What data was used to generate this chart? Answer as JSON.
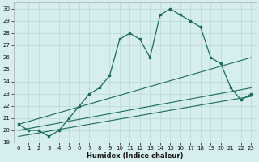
{
  "xlabel": "Humidex (Indice chaleur)",
  "background_color": "#d6eeee",
  "grid_color": "#b8d8d8",
  "line_color": "#1a6b5a",
  "xlim": [
    -0.5,
    23.5
  ],
  "ylim": [
    19,
    30.5
  ],
  "xticks": [
    0,
    1,
    2,
    3,
    4,
    5,
    6,
    7,
    8,
    9,
    10,
    11,
    12,
    13,
    14,
    15,
    16,
    17,
    18,
    19,
    20,
    21,
    22,
    23
  ],
  "yticks": [
    19,
    20,
    21,
    22,
    23,
    24,
    25,
    26,
    27,
    28,
    29,
    30
  ],
  "main_x": [
    0,
    1,
    2,
    3,
    4,
    5,
    6,
    7,
    8,
    9,
    10,
    11,
    12,
    13,
    14,
    15,
    16,
    17,
    18,
    19,
    20,
    21,
    22,
    23
  ],
  "main_y": [
    20.5,
    20.0,
    20.0,
    19.5,
    20.0,
    21.0,
    22.0,
    23.0,
    23.5,
    24.5,
    27.5,
    28.0,
    27.5,
    26.0,
    29.5,
    30.0,
    29.5,
    29.0,
    28.5,
    26.0,
    25.5,
    23.5,
    22.5,
    23.0
  ],
  "line1_x": [
    0,
    23
  ],
  "line1_y": [
    20.5,
    26.0
  ],
  "line2_x": [
    0,
    23
  ],
  "line2_y": [
    20.0,
    23.5
  ],
  "line3_x": [
    0,
    23
  ],
  "line3_y": [
    19.5,
    22.8
  ]
}
